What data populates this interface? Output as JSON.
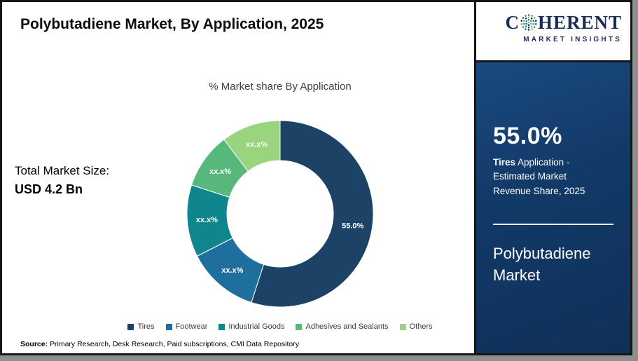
{
  "header": {
    "title": "Polybutadiene Market, By Application, 2025"
  },
  "chart_data": {
    "type": "donut",
    "title": "% Market share By Application",
    "legend_position": "bottom",
    "segments": [
      {
        "label": "Tires",
        "value": 55.0,
        "display": "55.0%",
        "color": "#1c4265"
      },
      {
        "label": "Footwear",
        "value": 12.5,
        "display": "xx.x%",
        "color": "#1f6f9e"
      },
      {
        "label": "Industrial Goods",
        "value": 12.5,
        "display": "xx.x%",
        "color": "#0f868e"
      },
      {
        "label": "Adhesives and Sealants",
        "value": 9.7,
        "display": "xx.x%",
        "color": "#57b87c"
      },
      {
        "label": "Others",
        "value": 10.3,
        "display": "xx.x%",
        "color": "#9ad47f"
      }
    ]
  },
  "main": {
    "total_label": "Total Market Size:",
    "total_value": "USD 4.2 Bn",
    "source_prefix": "Source:",
    "source_text": " Primary Research, Desk Research, Paid subscriptions, CMI Data Repository"
  },
  "sidebar": {
    "logo": {
      "brand_c": "C",
      "brand_rest": "HERENT",
      "tagline": "MARKET INSIGHTS"
    },
    "stat_value": "55.0%",
    "stat_bold": "Tires",
    "stat_rest": " Application - Estimated Market Revenue Share, 2025",
    "product_title": "Polybutadiene Market"
  }
}
